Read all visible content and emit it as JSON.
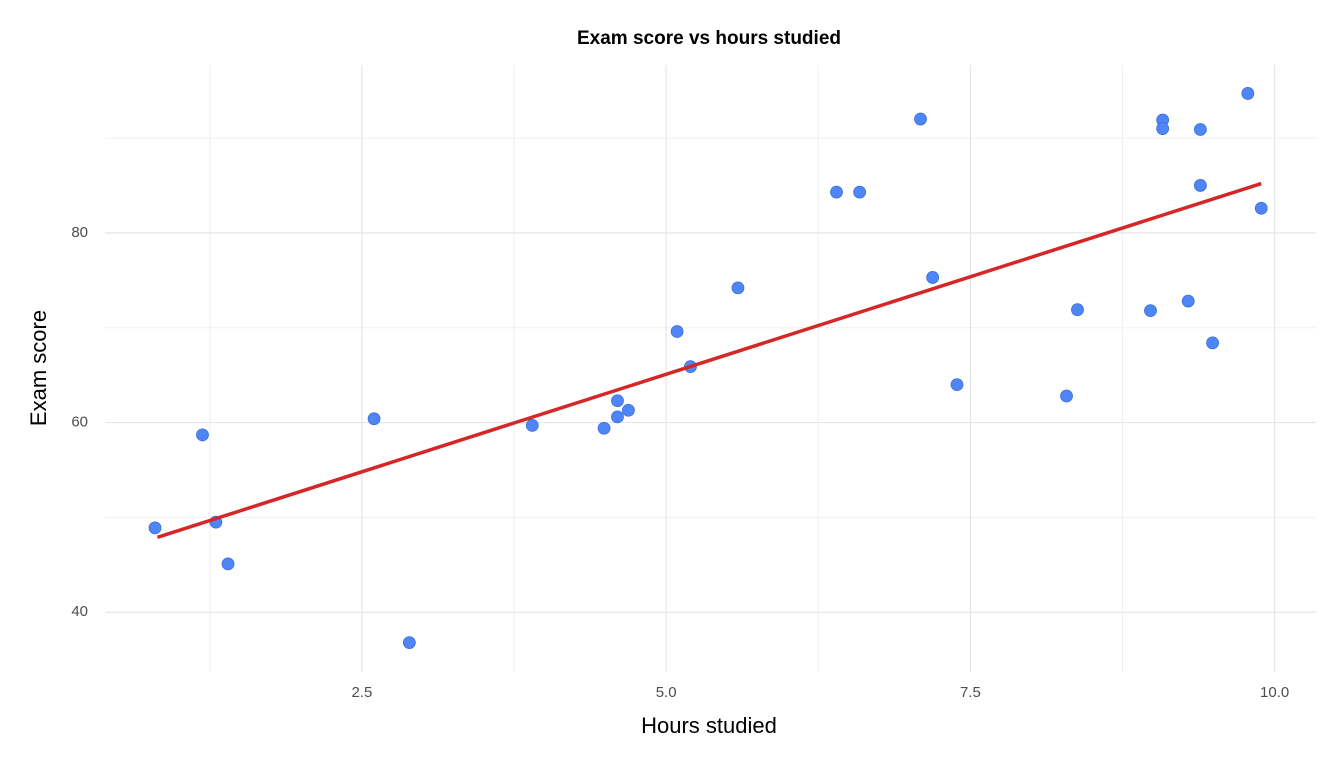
{
  "chart_data": {
    "type": "scatter",
    "title": "Exam score vs hours studied",
    "x_label": "Hours studied",
    "y_label": "Exam score",
    "x": [
      0.8,
      1.19,
      1.3,
      1.4,
      2.6,
      2.89,
      3.9,
      4.49,
      4.6,
      4.6,
      4.69,
      5.09,
      5.2,
      5.59,
      6.4,
      6.59,
      7.09,
      7.19,
      7.39,
      8.29,
      8.38,
      8.98,
      9.08,
      9.08,
      9.29,
      9.39,
      9.39,
      9.49,
      9.78,
      9.89
    ],
    "values": [
      48.9,
      58.7,
      49.5,
      45.1,
      60.4,
      36.8,
      59.7,
      59.4,
      62.3,
      60.6,
      61.3,
      69.6,
      65.9,
      74.2,
      84.3,
      84.3,
      92.0,
      75.3,
      64.0,
      62.8,
      71.9,
      71.8,
      91.9,
      91.0,
      72.8,
      90.9,
      85.0,
      68.4,
      94.7,
      82.6
    ],
    "color": "#4f86f7",
    "fit": {
      "x": [
        0.82,
        9.89
      ],
      "y": [
        47.9,
        85.2
      ],
      "color": "#d62728"
    },
    "xlim": [
      0.389,
      10.34
    ],
    "ylim": [
      33.7,
      97.7
    ],
    "xticks": [
      2.5,
      {
        "value": 5,
        "label": "5.0"
      },
      7.5,
      {
        "value": 10,
        "label": "10.0"
      }
    ],
    "yticks": [
      40,
      60,
      80
    ],
    "x_minor_ticks": [
      1.25,
      3.75,
      6.25,
      8.75
    ],
    "y_minor_ticks": [
      50,
      70,
      90
    ],
    "grid": true
  }
}
